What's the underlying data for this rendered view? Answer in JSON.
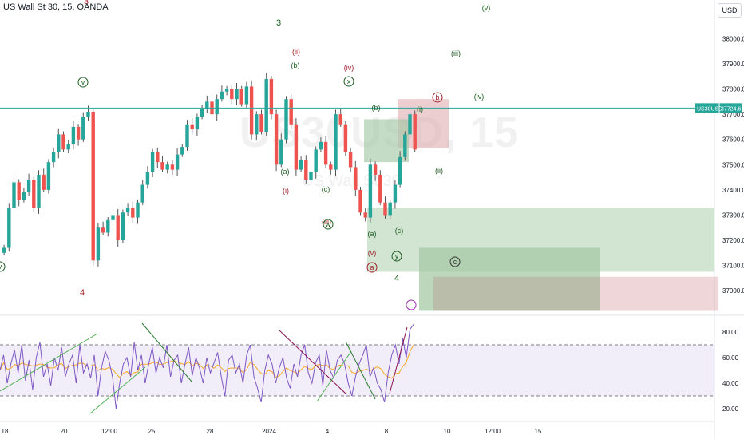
{
  "header": {
    "symbol_title": "US Wall St 30, 15, OANDA",
    "currency_button": "USD"
  },
  "watermark": {
    "symbol": "US30USD, 15",
    "name": "US Wall St 30"
  },
  "price_badge": {
    "ticker": "US30USD",
    "price": "37724.6"
  },
  "colors": {
    "up": "#26a69a",
    "down": "#ef5350",
    "wick": "#555555",
    "demand_zone": "#a5c9a6",
    "supply_zone": "#e0aeb2",
    "rsi": "#7e57c2",
    "rsi_ma": "#f7a825",
    "wave_green": "#1b5e20",
    "wave_red": "#a3212a"
  },
  "chart_data": [
    {
      "type": "candlestick",
      "symbol": "US30USD",
      "y_ticks": [
        "38000.0",
        "37900.0",
        "37800.0",
        "37700.0",
        "37600.0",
        "37500.0",
        "37400.0",
        "37300.0",
        "37200.0",
        "37100.0",
        "37000.0"
      ],
      "ylim": [
        36915,
        38090
      ],
      "current_price": 37724.6,
      "x_ticks": [
        "18",
        "20",
        "12:00",
        "25",
        "28",
        "2024",
        "4",
        "8",
        "10",
        "12:00",
        "15"
      ],
      "series": [
        {
          "values": [
            37170,
            37330,
            37430,
            37360,
            37390,
            37440,
            37330,
            37460,
            37400,
            37510,
            37550,
            37620,
            37560,
            37580,
            37650,
            37600,
            37690,
            37710,
            37120,
            37250,
            37230,
            37280,
            37300,
            37200,
            37310,
            37330,
            37290,
            37350,
            37420,
            37470,
            37550,
            37510,
            37480,
            37500,
            37480,
            37540,
            37570,
            37660,
            37640,
            37690,
            37720,
            37750,
            37700,
            37760,
            37790,
            37800,
            37760,
            37800,
            37740,
            37810,
            37620,
            37700,
            37630,
            37840,
            37700,
            37500,
            37600,
            37760,
            37660,
            37480,
            37520,
            37440,
            37470,
            37560,
            37590,
            37500,
            37480,
            37700,
            37660,
            37550,
            37490,
            37400,
            37310,
            37290,
            37500,
            37460,
            37350,
            37300,
            37350,
            37420,
            37530,
            37620,
            37700
          ]
        }
      ],
      "wave_labels": [
        {
          "text": "3",
          "color": "#a3212a"
        },
        {
          "text": "3",
          "color": "#1b5e20"
        },
        {
          "text": "v",
          "color": "#1b5e20"
        },
        {
          "text": "v",
          "color": "#1b5e20"
        },
        {
          "text": "4",
          "color": "#a3212a"
        },
        {
          "text": "(ii)",
          "color": "#a3212a"
        },
        {
          "text": "(b)",
          "color": "#1b5e20"
        },
        {
          "text": "(a)",
          "color": "#1b5e20"
        },
        {
          "text": "(i)",
          "color": "#a3212a"
        },
        {
          "text": "(iv)",
          "color": "#a3212a"
        },
        {
          "text": "x",
          "color": "#1b5e20"
        },
        {
          "text": "(c)",
          "color": "#1b5e20"
        },
        {
          "text": "(iii)",
          "color": "#a3212a"
        },
        {
          "text": "w",
          "color": "#1b5e20"
        },
        {
          "text": "(b)",
          "color": "#1b5e20"
        },
        {
          "text": "(a)",
          "color": "#1b5e20"
        },
        {
          "text": "(c)",
          "color": "#1b5e20"
        },
        {
          "text": "(v)",
          "color": "#a3212a"
        },
        {
          "text": "a",
          "color": "#a3212a"
        },
        {
          "text": "y",
          "color": "#1b5e20"
        },
        {
          "text": "4",
          "color": "#1b5e20"
        },
        {
          "text": "(i)",
          "color": "#1b5e20"
        },
        {
          "text": "b",
          "color": "#a3212a"
        },
        {
          "text": "(ii)",
          "color": "#1b5e20"
        },
        {
          "text": "(iii)",
          "color": "#1b5e20"
        },
        {
          "text": "(iv)",
          "color": "#1b5e20"
        },
        {
          "text": "(v)",
          "color": "#1b5e20"
        },
        {
          "text": "c",
          "color": "#333333"
        }
      ]
    },
    {
      "type": "line",
      "name": "RSI",
      "y_ticks": [
        "80.00",
        "60.00",
        "40.00",
        "20.00"
      ],
      "ylim": [
        15,
        90
      ],
      "bands": [
        70,
        30
      ],
      "series": [
        {
          "values": [
            50,
            62,
            40,
            55,
            66,
            48,
            70,
            42,
            58,
            35,
            60,
            72,
            45,
            55,
            38,
            60,
            50,
            68,
            45,
            55,
            62,
            40,
            70,
            48,
            55,
            44,
            62,
            30,
            52,
            65,
            58,
            45,
            20,
            40,
            55,
            60,
            45,
            72,
            50,
            62,
            40,
            55,
            68,
            48,
            60,
            52,
            70,
            45,
            58,
            62,
            40,
            55,
            68,
            46,
            60,
            52,
            40,
            60,
            48,
            56,
            64,
            45,
            30,
            58,
            62,
            48,
            55,
            40,
            62,
            70,
            45,
            36,
            25,
            50,
            62,
            55,
            40,
            52,
            60,
            44,
            36,
            55,
            45,
            62,
            70,
            48,
            40,
            56,
            62,
            38,
            66,
            50,
            44,
            58,
            62,
            55,
            40,
            30,
            45,
            55,
            62,
            70,
            45,
            52,
            40,
            35,
            25,
            48,
            62,
            70,
            55,
            75,
            60,
            82,
            86
          ]
        }
      ]
    }
  ]
}
